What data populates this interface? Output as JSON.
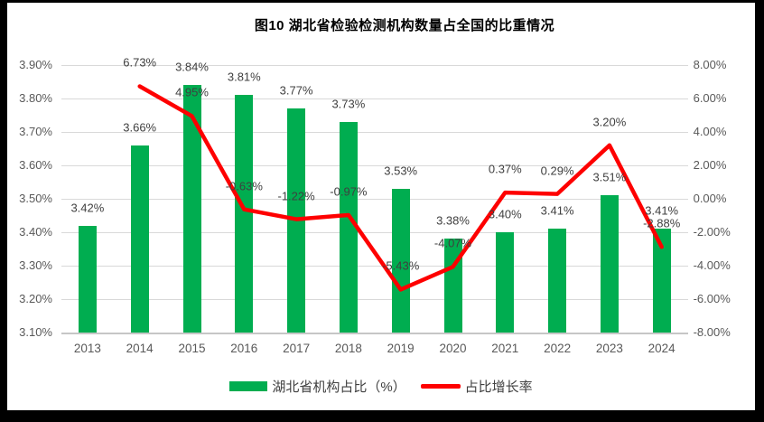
{
  "title": "图10 湖北省检验检测机构数量占全国的比重情况",
  "chart_data": {
    "type": "bar",
    "subtype": "combo-bar-line-dual-axis",
    "title": "图10 湖北省检验检测机构数量占全国的比重情况",
    "categories": [
      "2013",
      "2014",
      "2015",
      "2016",
      "2017",
      "2018",
      "2019",
      "2020",
      "2021",
      "2022",
      "2023",
      "2024"
    ],
    "series": [
      {
        "name": "湖北省机构占比（%）",
        "type": "bar",
        "axis": "left",
        "color": "#00ad50",
        "values": [
          3.42,
          3.66,
          3.84,
          3.81,
          3.77,
          3.73,
          3.53,
          3.38,
          3.4,
          3.41,
          3.51,
          3.41
        ],
        "labels": [
          "3.42%",
          "3.66%",
          "3.84%",
          "3.81%",
          "3.77%",
          "3.73%",
          "3.53%",
          "3.38%",
          "3.40%",
          "3.41%",
          "3.51%",
          "3.41%"
        ]
      },
      {
        "name": "占比增长率",
        "type": "line",
        "axis": "right",
        "color": "#fe0000",
        "values": [
          null,
          6.73,
          4.95,
          -0.63,
          -1.22,
          -0.97,
          -5.43,
          -4.07,
          0.37,
          0.29,
          3.2,
          -2.88
        ],
        "labels": [
          "",
          "6.73%",
          "4.95%",
          "-0.63%",
          "-1.22%",
          "-0.97%",
          "-5.43%",
          "-4.07%",
          "0.37%",
          "0.29%",
          "3.20%",
          "-2.88%"
        ]
      }
    ],
    "left_axis": {
      "min": 3.1,
      "max": 3.9,
      "step": 0.1,
      "ticks": [
        "3.90%",
        "3.80%",
        "3.70%",
        "3.60%",
        "3.50%",
        "3.40%",
        "3.30%",
        "3.20%",
        "3.10%"
      ]
    },
    "right_axis": {
      "min": -8.0,
      "max": 8.0,
      "step": 2.0,
      "ticks": [
        "8.00%",
        "6.00%",
        "4.00%",
        "2.00%",
        "0.00%",
        "-2.00%",
        "-4.00%",
        "-6.00%",
        "-8.00%"
      ]
    },
    "grid": true,
    "legend_position": "bottom"
  },
  "colors": {
    "bar": "#00ad50",
    "line": "#fe0000",
    "gridline": "#d9d9d9",
    "axis_line": "#c6c6c6",
    "tick_text": "#595959",
    "label_text": "#3f3f3f",
    "title_text": "#000000",
    "frame": "#000000",
    "background": "#ffffff"
  }
}
